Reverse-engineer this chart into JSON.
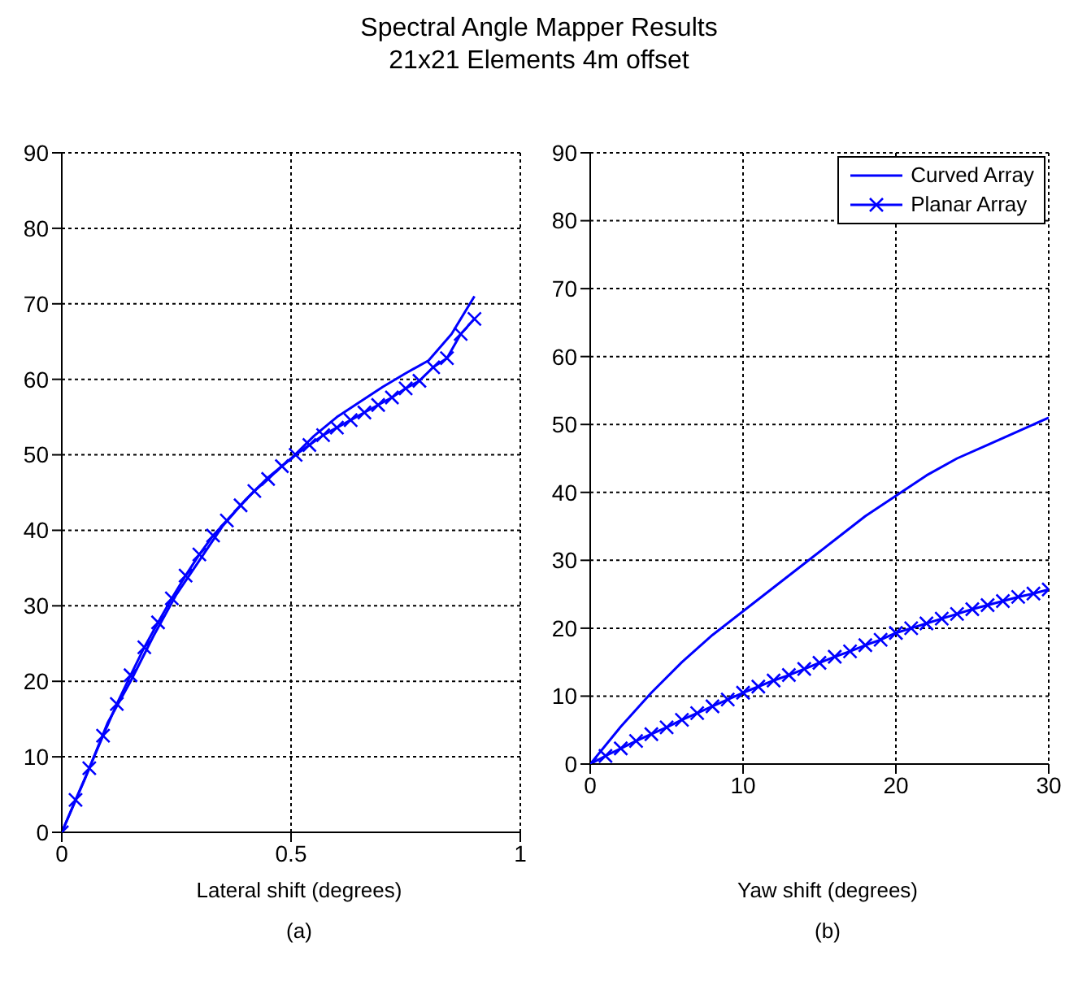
{
  "chart_data": [
    {
      "type": "line",
      "title": "Spectral Angle Mapper Results",
      "subtitle": "21x21 Elements 4m offset",
      "xlabel": "Lateral shift (degrees)",
      "annotations": [
        "(a)"
      ],
      "xlim": [
        0,
        1
      ],
      "xticks": [
        0,
        0.5,
        1
      ],
      "ylim": [
        0,
        90
      ],
      "yticks": [
        0,
        10,
        20,
        30,
        40,
        50,
        60,
        70,
        80,
        90
      ],
      "grid": true,
      "line_style": "solid",
      "series": [
        {
          "color": "#0000ff",
          "marker": "none",
          "x": [
            0,
            0.05,
            0.1,
            0.15,
            0.2,
            0.25,
            0.3,
            0.35,
            0.4,
            0.45,
            0.5,
            0.55,
            0.6,
            0.65,
            0.7,
            0.75,
            0.8,
            0.85,
            0.9
          ],
          "values": [
            0,
            7,
            14.5,
            20,
            26,
            31.5,
            36,
            40.5,
            44,
            47,
            49.5,
            52.5,
            55,
            57,
            59,
            60.8,
            62.5,
            66,
            71
          ]
        },
        {
          "color": "#0000ff",
          "marker": "cross",
          "x": [
            0,
            0.03,
            0.06,
            0.09,
            0.12,
            0.15,
            0.18,
            0.21,
            0.24,
            0.27,
            0.3,
            0.33,
            0.36,
            0.39,
            0.42,
            0.45,
            0.48,
            0.51,
            0.54,
            0.57,
            0.6,
            0.63,
            0.66,
            0.69,
            0.72,
            0.75,
            0.78,
            0.81,
            0.84,
            0.87,
            0.9
          ],
          "values": [
            0,
            4.3,
            8.5,
            12.8,
            17,
            20.8,
            24.5,
            27.8,
            31,
            34,
            36.8,
            39.3,
            41.3,
            43.3,
            45.2,
            46.8,
            48.5,
            50,
            51.3,
            52.6,
            53.6,
            54.6,
            55.6,
            56.6,
            57.6,
            58.8,
            59.8,
            61.6,
            62.8,
            66,
            68
          ]
        }
      ]
    },
    {
      "type": "line",
      "xlabel": "Yaw shift (degrees)",
      "annotations": [
        "(b)"
      ],
      "xlim": [
        0,
        30
      ],
      "xticks": [
        0,
        10,
        20,
        30
      ],
      "ylim": [
        0,
        90
      ],
      "yticks": [
        0,
        10,
        20,
        30,
        40,
        50,
        60,
        70,
        80,
        90
      ],
      "grid": true,
      "legend": "top right",
      "line_style": "solid",
      "series": [
        {
          "name": "Curved Array",
          "color": "#0000ff",
          "marker": "none",
          "x": [
            0,
            2,
            4,
            6,
            8,
            10,
            12,
            14,
            16,
            18,
            20,
            22,
            24,
            26,
            28,
            30
          ],
          "values": [
            0,
            5.5,
            10.5,
            15,
            19,
            22.5,
            26,
            29.5,
            33,
            36.5,
            39.5,
            42.5,
            45,
            47,
            49,
            51
          ]
        },
        {
          "name": "Planar Array",
          "color": "#0000ff",
          "marker": "cross",
          "x": [
            0,
            1,
            2,
            3,
            4,
            5,
            6,
            7,
            8,
            9,
            10,
            11,
            12,
            13,
            14,
            15,
            16,
            17,
            18,
            19,
            20,
            21,
            22,
            23,
            24,
            25,
            26,
            27,
            28,
            29,
            30
          ],
          "values": [
            0,
            1.2,
            2.3,
            3.4,
            4.4,
            5.4,
            6.5,
            7.5,
            8.5,
            9.5,
            10.5,
            11.4,
            12.3,
            13.1,
            14,
            14.9,
            15.8,
            16.6,
            17.5,
            18.3,
            19.3,
            20,
            20.7,
            21.4,
            22.1,
            22.8,
            23.4,
            24,
            24.6,
            25.1,
            25.7
          ]
        }
      ]
    }
  ]
}
